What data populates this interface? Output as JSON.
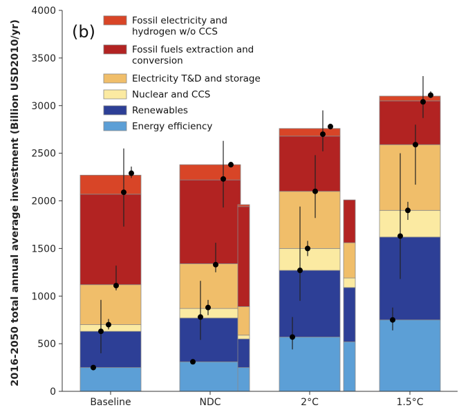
{
  "chart_data": {
    "type": "bar",
    "stacked": true,
    "panel_label": "(b)",
    "ylabel": "2016-2050 total annual average investment (Billion USD2010/yr)",
    "ylim": [
      0,
      4000
    ],
    "yticks": [
      "0",
      "500",
      "1000",
      "1500",
      "2000",
      "2500",
      "3000",
      "3500",
      "4000"
    ],
    "categories": [
      "Baseline",
      "NDC",
      "2°C",
      "1.5°C"
    ],
    "legend_placement": "top-left",
    "series": [
      {
        "name": "Energy efficiency",
        "color": "#5c9fd6",
        "values": [
          250,
          310,
          570,
          750
        ]
      },
      {
        "name": "Renewables",
        "color": "#2d3f96",
        "values": [
          380,
          460,
          700,
          870
        ]
      },
      {
        "name": "Nuclear and CCS",
        "color": "#fbeaa2",
        "values": [
          70,
          100,
          230,
          280
        ]
      },
      {
        "name": "Electricity T&D and storage",
        "color": "#f0be6a",
        "values": [
          420,
          470,
          600,
          690
        ]
      },
      {
        "name": "Fossil fuels extraction and conversion",
        "color": "#b22322",
        "values": [
          950,
          880,
          580,
          460
        ]
      },
      {
        "name": "Fossil electricity and hydrogen w/o CCS",
        "color": "#d84527",
        "values": [
          200,
          160,
          80,
          50
        ]
      }
    ],
    "narrow_bars": [
      {
        "after": "NDC",
        "values": [
          250,
          300,
          40,
          300,
          1050,
          20
        ]
      },
      {
        "after": "2°C",
        "values": [
          520,
          570,
          100,
          370,
          450,
          0
        ]
      }
    ],
    "error_points": [
      {
        "category": "Baseline",
        "points": [
          {
            "value": 250,
            "low": 240,
            "high": 260
          },
          {
            "value": 630,
            "low": 400,
            "high": 960
          },
          {
            "value": 700,
            "low": 650,
            "high": 760
          },
          {
            "value": 1110,
            "low": 1060,
            "high": 1320
          },
          {
            "value": 2090,
            "low": 1730,
            "high": 2550
          },
          {
            "value": 2290,
            "low": 2240,
            "high": 2360
          }
        ]
      },
      {
        "category": "NDC",
        "points": [
          {
            "value": 310,
            "low": 300,
            "high": 320
          },
          {
            "value": 780,
            "low": 540,
            "high": 1160
          },
          {
            "value": 880,
            "low": 800,
            "high": 960
          },
          {
            "value": 1330,
            "low": 1250,
            "high": 1560
          },
          {
            "value": 2230,
            "low": 1930,
            "high": 2630
          },
          {
            "value": 2380,
            "low": 2350,
            "high": 2410
          }
        ]
      },
      {
        "category": "2°C",
        "points": [
          {
            "value": 570,
            "low": 440,
            "high": 780
          },
          {
            "value": 1270,
            "low": 950,
            "high": 1940
          },
          {
            "value": 1500,
            "low": 1420,
            "high": 1580
          },
          {
            "value": 2100,
            "low": 1820,
            "high": 2480
          },
          {
            "value": 2700,
            "low": 2520,
            "high": 2950
          },
          {
            "value": 2780,
            "low": 2750,
            "high": 2810
          }
        ]
      },
      {
        "category": "1.5°C",
        "points": [
          {
            "value": 750,
            "low": 640,
            "high": 880
          },
          {
            "value": 1630,
            "low": 1180,
            "high": 2500
          },
          {
            "value": 1900,
            "low": 1800,
            "high": 1990
          },
          {
            "value": 2590,
            "low": 2170,
            "high": 2800
          },
          {
            "value": 3040,
            "low": 2870,
            "high": 3310
          },
          {
            "value": 3110,
            "low": 3080,
            "high": 3150
          }
        ]
      }
    ]
  }
}
